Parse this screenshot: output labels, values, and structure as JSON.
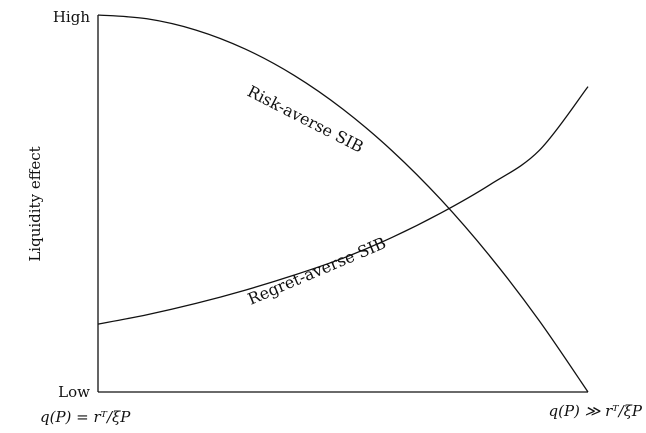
{
  "chart_data": {
    "type": "line",
    "title": "",
    "ylabel": "Liquidity effect",
    "y_ticks": {
      "high": "High",
      "low": "Low"
    },
    "x_ticks": {
      "left": "q(P) = rᵀ/ξP",
      "right": "q(P) ≫ rᵀ/ξP"
    },
    "xlim": [
      0,
      1
    ],
    "ylim": [
      0,
      1
    ],
    "grid": false,
    "legend": "none",
    "line_color": "#111111",
    "series": [
      {
        "name": "Risk-averse SIB",
        "x": [
          0.0,
          0.1,
          0.2,
          0.3,
          0.4,
          0.5,
          0.6,
          0.7,
          0.8,
          0.9,
          1.0
        ],
        "y": [
          1.0,
          0.99,
          0.96,
          0.91,
          0.84,
          0.75,
          0.64,
          0.51,
          0.36,
          0.19,
          0.0
        ]
      },
      {
        "name": "Regret-averse SIB",
        "x": [
          0.0,
          0.1,
          0.2,
          0.3,
          0.4,
          0.5,
          0.6,
          0.7,
          0.8,
          0.9,
          1.0
        ],
        "y": [
          0.18,
          0.205,
          0.235,
          0.27,
          0.31,
          0.355,
          0.41,
          0.475,
          0.55,
          0.64,
          0.81
        ]
      }
    ]
  }
}
